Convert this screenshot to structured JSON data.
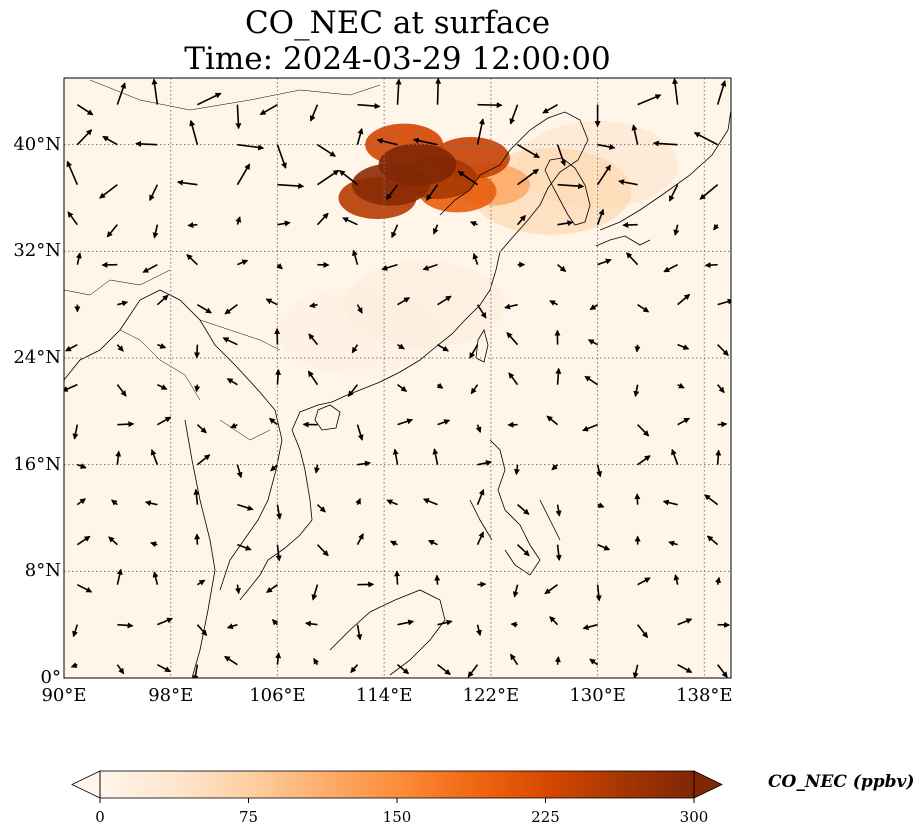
{
  "title_line1": "CO_NEC at surface",
  "title_line2": "Time: 2024-03-29 12:00:00",
  "map": {
    "lon_range": [
      90,
      140
    ],
    "lat_range": [
      0,
      45
    ],
    "lon_ticks": [
      {
        "v": 90,
        "label": "90°E"
      },
      {
        "v": 98,
        "label": "98°E"
      },
      {
        "v": 106,
        "label": "106°E"
      },
      {
        "v": 114,
        "label": "114°E"
      },
      {
        "v": 122,
        "label": "122°E"
      },
      {
        "v": 130,
        "label": "130°E"
      },
      {
        "v": 138,
        "label": "138°E"
      }
    ],
    "lat_ticks": [
      {
        "v": 0,
        "label": "0°"
      },
      {
        "v": 8,
        "label": "8°N"
      },
      {
        "v": 16,
        "label": "16°N"
      },
      {
        "v": 24,
        "label": "24°N"
      },
      {
        "v": 32,
        "label": "32°N"
      },
      {
        "v": 40,
        "label": "40°N"
      }
    ],
    "gridlines": true,
    "background_color": "#fff5e8",
    "plume": [
      {
        "lon": 116.5,
        "lat": 38.5,
        "value": 300
      },
      {
        "lon": 114.5,
        "lat": 37.0,
        "value": 290
      },
      {
        "lon": 118.0,
        "lat": 37.5,
        "value": 260
      },
      {
        "lon": 120.5,
        "lat": 39.0,
        "value": 240
      },
      {
        "lon": 115.5,
        "lat": 40.0,
        "value": 230
      },
      {
        "lon": 119.5,
        "lat": 36.5,
        "value": 200
      },
      {
        "lon": 113.5,
        "lat": 36.0,
        "value": 250
      },
      {
        "lon": 122.0,
        "lat": 37.0,
        "value": 150
      },
      {
        "lon": 126.5,
        "lat": 36.5,
        "value": 70
      },
      {
        "lon": 130.0,
        "lat": 38.5,
        "value": 40
      },
      {
        "lon": 117.0,
        "lat": 28.0,
        "value": 20
      },
      {
        "lon": 112.0,
        "lat": 26.0,
        "value": 15
      }
    ],
    "wind_grid_step_deg": 3,
    "coastline_color": "#000000"
  },
  "colorbar": {
    "label": "CO_NEC (ppbv)",
    "min": 0,
    "max": 300,
    "ticks": [
      "0",
      "75",
      "150",
      "225",
      "300"
    ],
    "extend": "both",
    "colors": [
      "#fff5eb",
      "#fee6ce",
      "#fdd0a2",
      "#fdae6b",
      "#fd8d3c",
      "#f16913",
      "#d94801",
      "#a63603",
      "#7f2704"
    ]
  }
}
